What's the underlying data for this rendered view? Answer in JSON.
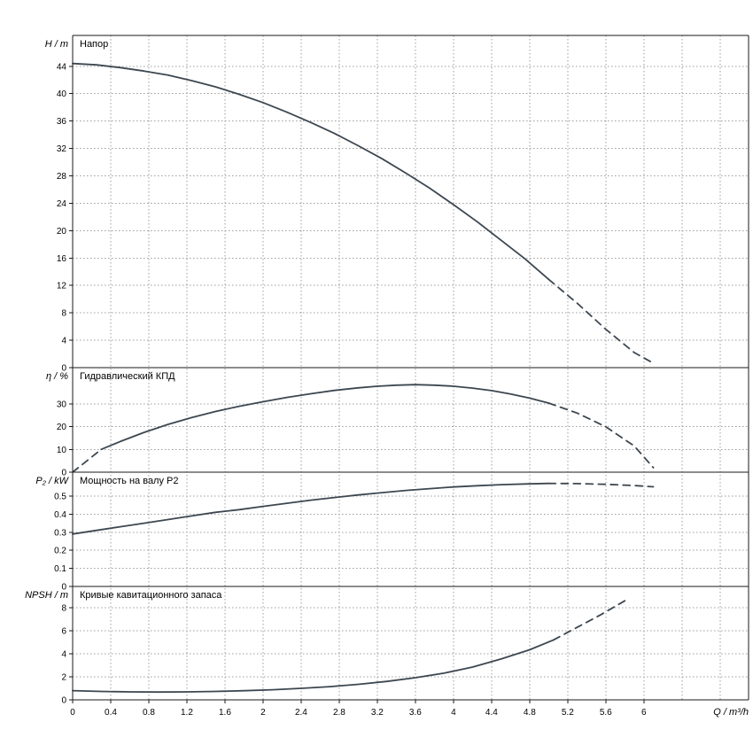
{
  "chart_data": {
    "type": "line",
    "description": "Pump performance curves, four stacked panels sharing flow axis",
    "curve_color": "#3d4750",
    "grid_color": "#9e9e9e",
    "axis_color": "#1a1a1a",
    "x_axis": {
      "label": "Q / m³/h",
      "min": 0,
      "max": 7.1,
      "grid_step": 0.4,
      "tick_values": [
        0,
        0.4,
        0.8,
        1.2,
        1.6,
        2,
        2.4,
        2.8,
        3.2,
        3.6,
        4,
        4.4,
        4.8,
        5.2,
        5.6,
        6
      ],
      "tick_labels": [
        "0",
        "0.4",
        "0.8",
        "1.2",
        "1.6",
        "2",
        "2.4",
        "2.8",
        "3.2",
        "3.6",
        "4",
        "4.4",
        "4.8",
        "5.2",
        "5.6",
        "6"
      ]
    },
    "panels": [
      {
        "id": "head",
        "title": "Напор",
        "unit_label": "H / m",
        "ymin": 0,
        "ymax": 48.5,
        "tick_values": [
          0,
          4,
          8,
          12,
          16,
          20,
          24,
          28,
          32,
          36,
          40,
          44
        ],
        "tick_labels": [
          "0",
          "4",
          "8",
          "12",
          "16",
          "20",
          "24",
          "28",
          "32",
          "36",
          "40",
          "44"
        ],
        "series": [
          {
            "name": "head-curve",
            "dash": false,
            "points": [
              [
                0,
                44.4
              ],
              [
                0.25,
                44.2
              ],
              [
                0.5,
                43.8
              ],
              [
                0.75,
                43.3
              ],
              [
                1,
                42.7
              ],
              [
                1.25,
                41.9
              ],
              [
                1.5,
                41.0
              ],
              [
                1.75,
                39.9
              ],
              [
                2,
                38.7
              ],
              [
                2.25,
                37.3
              ],
              [
                2.5,
                35.8
              ],
              [
                2.75,
                34.2
              ],
              [
                3,
                32.4
              ],
              [
                3.25,
                30.5
              ],
              [
                3.5,
                28.4
              ],
              [
                3.75,
                26.2
              ],
              [
                4,
                23.8
              ],
              [
                4.25,
                21.3
              ],
              [
                4.5,
                18.6
              ],
              [
                4.75,
                15.9
              ],
              [
                5,
                12.9
              ]
            ]
          },
          {
            "name": "head-curve-extrapolated",
            "dash": true,
            "points": [
              [
                5,
                12.9
              ],
              [
                5.3,
                9.4
              ],
              [
                5.6,
                5.6
              ],
              [
                5.9,
                2.2
              ],
              [
                6.08,
                0.8
              ]
            ]
          }
        ]
      },
      {
        "id": "efficiency",
        "title": "Гидравлический КПД",
        "unit_label": "η / %",
        "ymin": 0,
        "ymax": 46,
        "tick_values": [
          0,
          10,
          20,
          30
        ],
        "tick_labels": [
          "0",
          "10",
          "20",
          "30"
        ],
        "series": [
          {
            "name": "efficiency-low-flow",
            "dash": true,
            "points": [
              [
                0,
                0
              ],
              [
                0.3,
                10
              ]
            ]
          },
          {
            "name": "efficiency-curve",
            "dash": false,
            "points": [
              [
                0.3,
                10
              ],
              [
                0.5,
                13.5
              ],
              [
                0.75,
                17.5
              ],
              [
                1,
                21
              ],
              [
                1.25,
                24
              ],
              [
                1.5,
                26.7
              ],
              [
                1.75,
                29
              ],
              [
                2,
                31
              ],
              [
                2.25,
                32.9
              ],
              [
                2.5,
                34.5
              ],
              [
                2.75,
                36
              ],
              [
                3,
                37.1
              ],
              [
                3.2,
                37.8
              ],
              [
                3.4,
                38.3
              ],
              [
                3.6,
                38.5
              ],
              [
                3.8,
                38.3
              ],
              [
                4,
                37.8
              ],
              [
                4.2,
                37
              ],
              [
                4.4,
                35.9
              ],
              [
                4.6,
                34.4
              ],
              [
                4.8,
                32.6
              ],
              [
                5,
                30.4
              ]
            ]
          },
          {
            "name": "efficiency-extrapolated",
            "dash": true,
            "points": [
              [
                5,
                30.4
              ],
              [
                5.3,
                26
              ],
              [
                5.6,
                20
              ],
              [
                5.9,
                11.5
              ],
              [
                6.1,
                2
              ]
            ]
          }
        ]
      },
      {
        "id": "shaft-power",
        "title": "Мощность на валу P2",
        "unit_label": "P₂ / kW",
        "ymin": 0,
        "ymax": 0.632,
        "tick_values": [
          0,
          0.1,
          0.2,
          0.3,
          0.4,
          0.5
        ],
        "tick_labels": [
          "0",
          "0.1",
          "0.2",
          "0.3",
          "0.4",
          "0.5"
        ],
        "series": [
          {
            "name": "shaft-power-curve",
            "dash": false,
            "points": [
              [
                0,
                0.29
              ],
              [
                0.25,
                0.31
              ],
              [
                0.5,
                0.33
              ],
              [
                0.75,
                0.35
              ],
              [
                1,
                0.37
              ],
              [
                1.25,
                0.39
              ],
              [
                1.5,
                0.41
              ],
              [
                1.75,
                0.425
              ],
              [
                2,
                0.443
              ],
              [
                2.25,
                0.46
              ],
              [
                2.5,
                0.477
              ],
              [
                2.75,
                0.492
              ],
              [
                3,
                0.506
              ],
              [
                3.25,
                0.519
              ],
              [
                3.5,
                0.531
              ],
              [
                3.75,
                0.541
              ],
              [
                4,
                0.55
              ],
              [
                4.25,
                0.557
              ],
              [
                4.5,
                0.563
              ],
              [
                4.75,
                0.567
              ],
              [
                5,
                0.57
              ]
            ]
          },
          {
            "name": "shaft-power-extrapolated",
            "dash": true,
            "points": [
              [
                5,
                0.57
              ],
              [
                5.3,
                0.569
              ],
              [
                5.6,
                0.565
              ],
              [
                5.9,
                0.558
              ],
              [
                6.1,
                0.551
              ]
            ]
          }
        ]
      },
      {
        "id": "npsh",
        "title": "Кривые кавитационного запаса",
        "unit_label": "NPSH / m",
        "ymin": 0,
        "ymax": 9.85,
        "tick_values": [
          0,
          2,
          4,
          6,
          8
        ],
        "tick_labels": [
          "0",
          "2",
          "4",
          "6",
          "8"
        ],
        "series": [
          {
            "name": "npsh-curve",
            "dash": false,
            "points": [
              [
                0,
                0.8
              ],
              [
                0.3,
                0.73
              ],
              [
                0.6,
                0.69
              ],
              [
                0.9,
                0.68
              ],
              [
                1.2,
                0.69
              ],
              [
                1.5,
                0.73
              ],
              [
                1.8,
                0.79
              ],
              [
                2.1,
                0.88
              ],
              [
                2.4,
                1.0
              ],
              [
                2.7,
                1.15
              ],
              [
                3,
                1.35
              ],
              [
                3.3,
                1.6
              ],
              [
                3.6,
                1.92
              ],
              [
                3.9,
                2.32
              ],
              [
                4.2,
                2.85
              ],
              [
                4.5,
                3.55
              ],
              [
                4.8,
                4.35
              ],
              [
                5.05,
                5.2
              ]
            ]
          },
          {
            "name": "npsh-extrapolated",
            "dash": true,
            "points": [
              [
                5.05,
                5.2
              ],
              [
                5.3,
                6.3
              ],
              [
                5.55,
                7.4
              ],
              [
                5.8,
                8.6
              ]
            ]
          }
        ]
      }
    ]
  }
}
